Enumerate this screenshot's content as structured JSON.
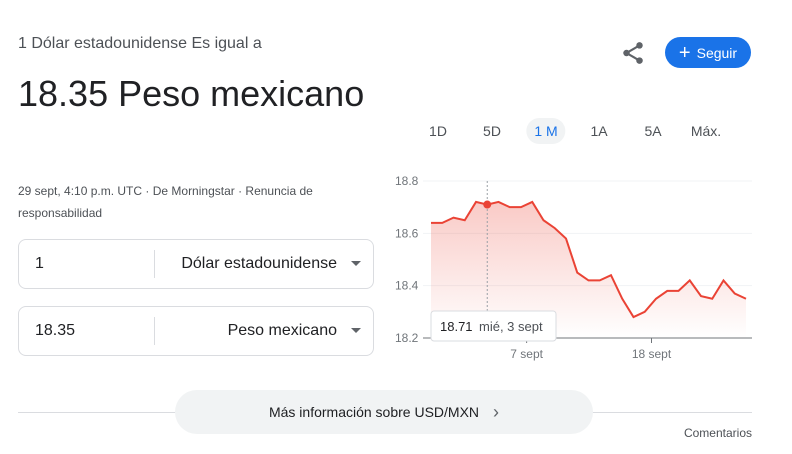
{
  "header": {
    "prefix": "1 Dólar estadounidense Es igual a",
    "value": "18.35 Peso mexicano",
    "meta": "29 sept, 4:10 p.m. UTC · De Morningstar · Renuncia de responsabilidad"
  },
  "actions": {
    "share_icon": "share-icon",
    "follow_label": "Seguir",
    "follow_color": "#1a73e8"
  },
  "converter": [
    {
      "amount": "1",
      "currency": "Dólar estadounidense"
    },
    {
      "amount": "18.35",
      "currency": "Peso mexicano"
    }
  ],
  "range_tabs": [
    {
      "label": "1D"
    },
    {
      "label": "5D"
    },
    {
      "label": "1 M",
      "active": true
    },
    {
      "label": "1A"
    },
    {
      "label": "5A"
    },
    {
      "label": "Máx."
    }
  ],
  "chart_data": {
    "type": "area",
    "values": [
      18.64,
      18.64,
      18.66,
      18.65,
      18.72,
      18.71,
      18.72,
      18.7,
      18.7,
      18.72,
      18.65,
      18.62,
      18.58,
      18.45,
      18.42,
      18.42,
      18.44,
      18.35,
      18.28,
      18.3,
      18.35,
      18.38,
      18.38,
      18.42,
      18.36,
      18.35,
      18.42,
      18.37,
      18.35
    ],
    "ylim": [
      18.2,
      18.8
    ],
    "yticks": [
      "18.8",
      "18.6",
      "18.4",
      "18.2"
    ],
    "xticks": [
      {
        "label": "7 sept",
        "index": 8.5
      },
      {
        "label": "18 sept",
        "index": 19.6
      }
    ],
    "line_color": "#ea4335",
    "grid": true,
    "tooltip": {
      "index": 5,
      "value": "18.71",
      "date": "mié, 3 sept"
    }
  },
  "footer": {
    "more_label": "Más información sobre USD/MXN",
    "feedback": "Comentarios"
  }
}
